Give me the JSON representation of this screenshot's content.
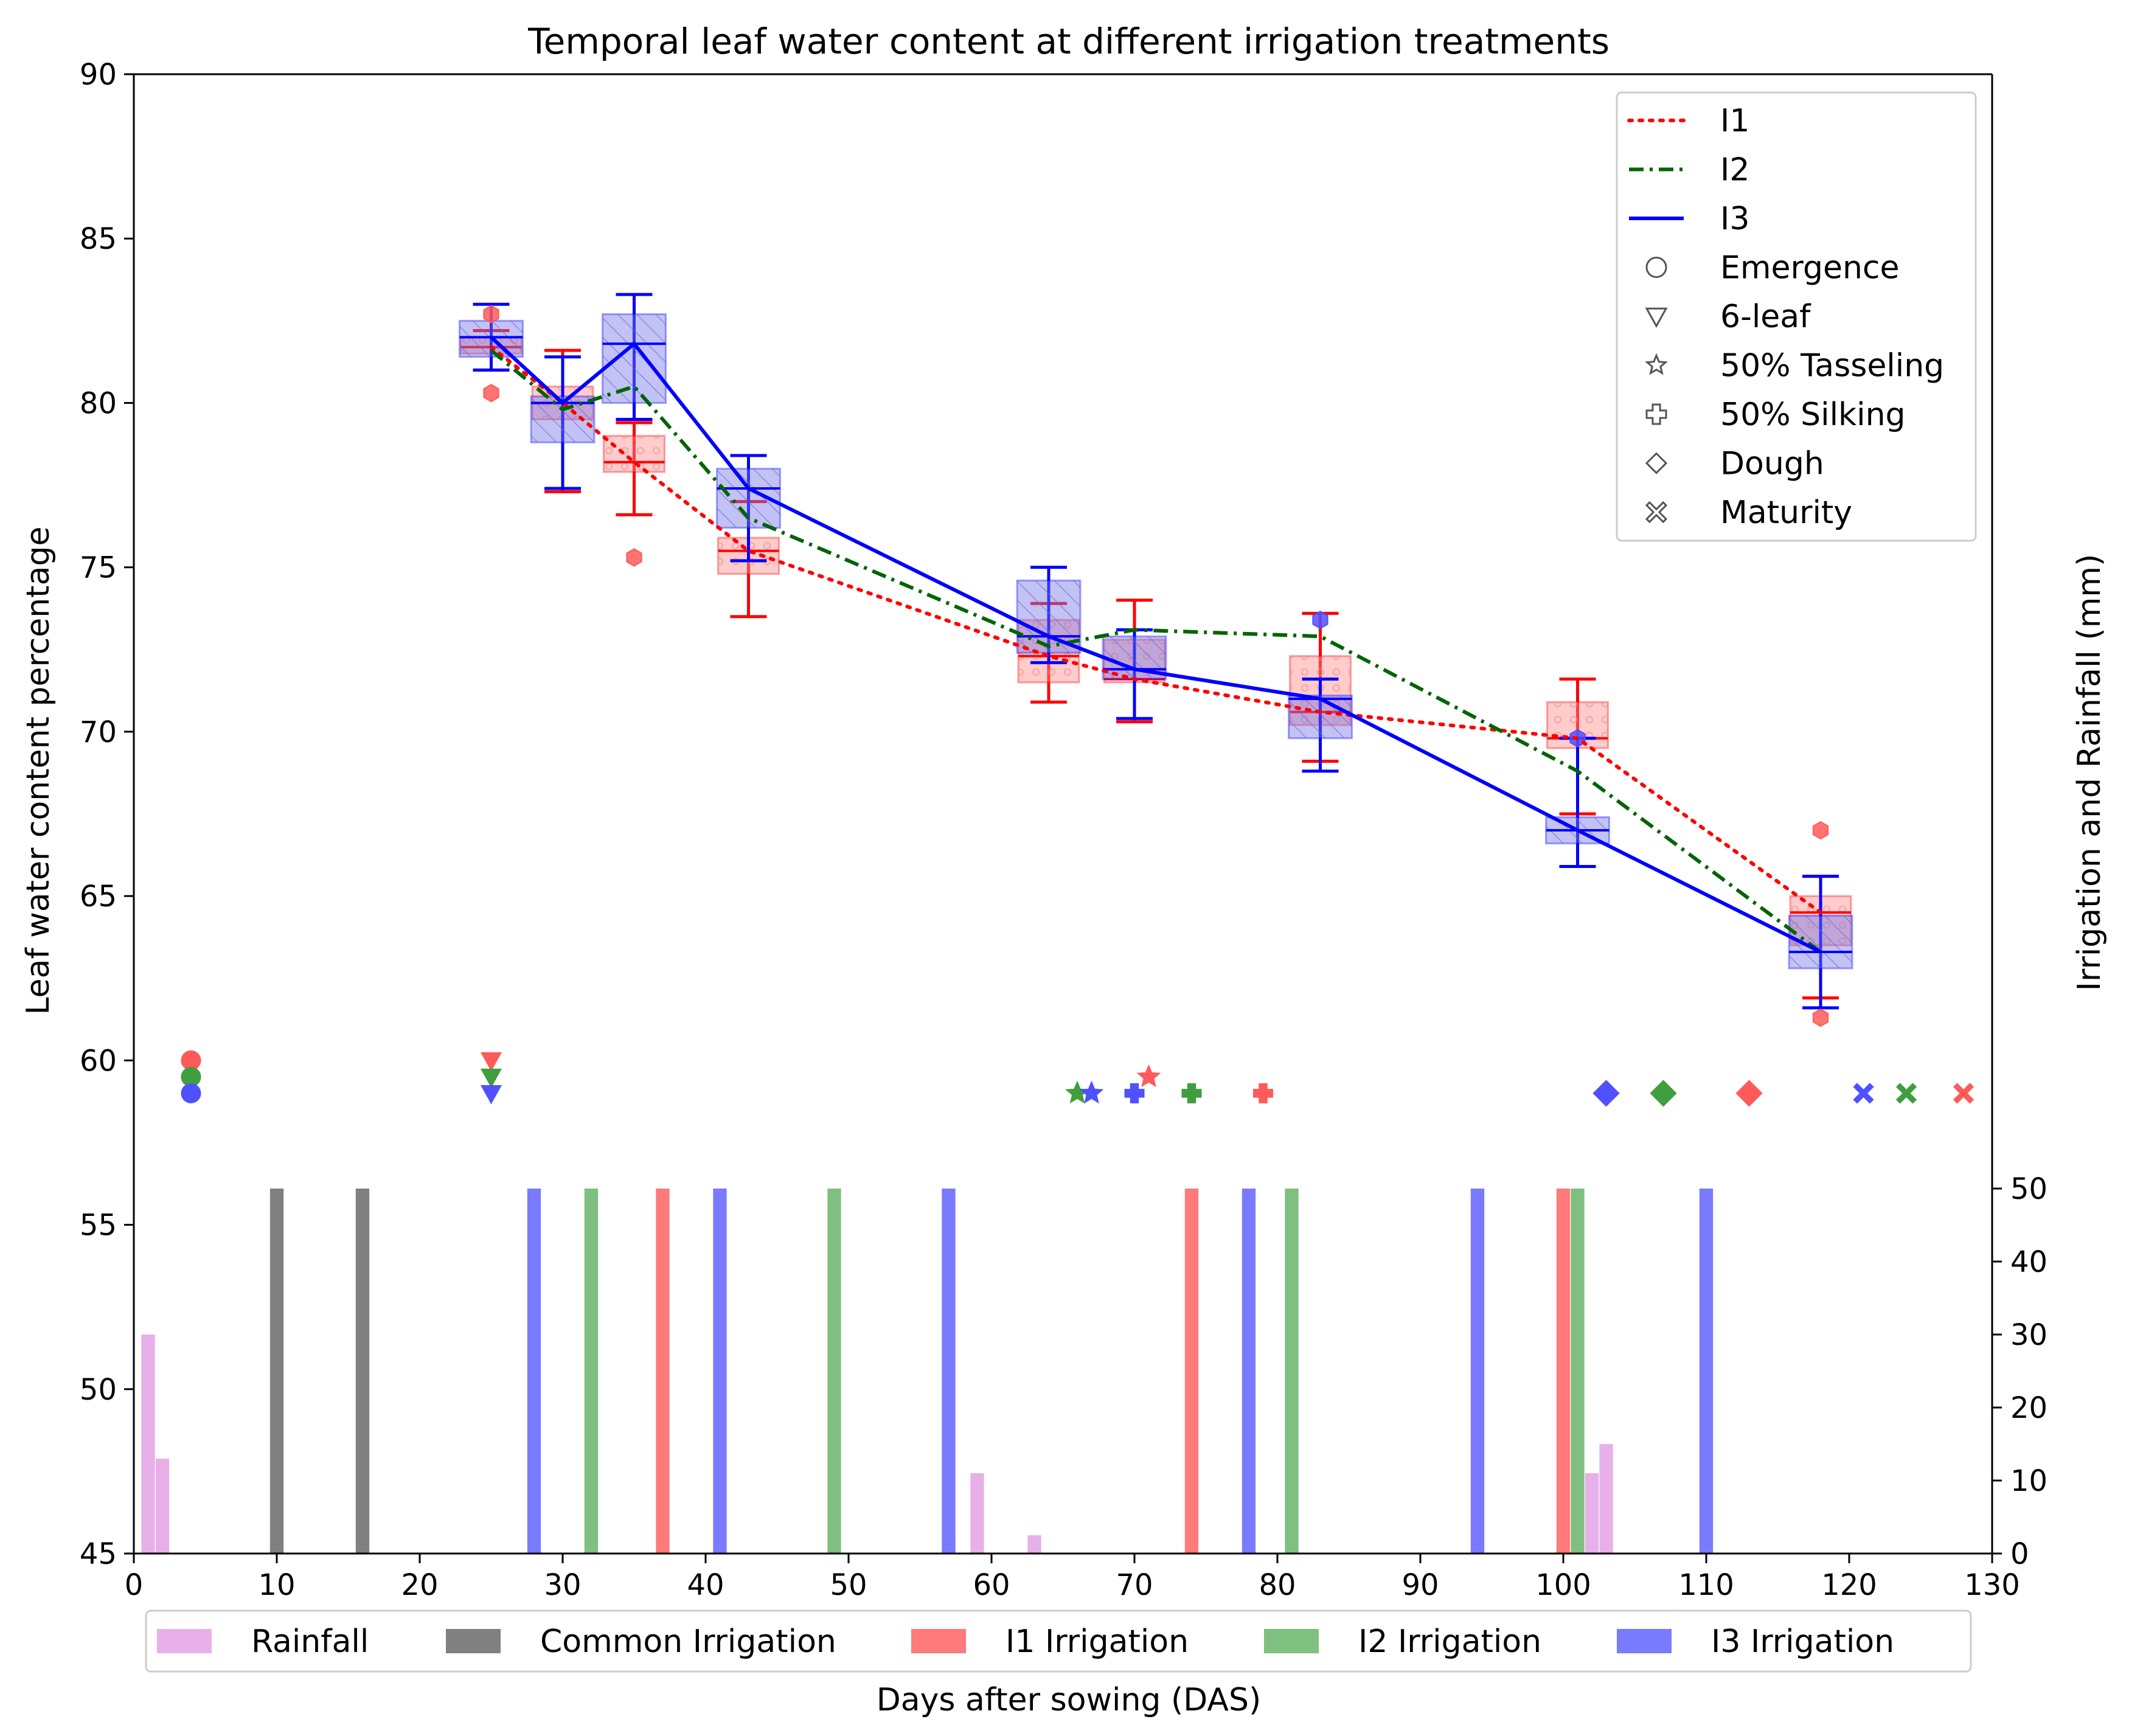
{
  "chart_data": {
    "type": "line",
    "title": "Temporal leaf water content at different irrigation treatments",
    "xlabel": "Days after sowing (DAS)",
    "ylabel": "Leaf water content percentage",
    "y2label": "Irrigation and Rainfall (mm)",
    "xlim": [
      0,
      130
    ],
    "ylim": [
      45,
      90
    ],
    "y2lim": [
      0,
      50
    ],
    "x_ticks": [
      0,
      10,
      20,
      30,
      40,
      50,
      60,
      70,
      80,
      90,
      100,
      110,
      120,
      130
    ],
    "y_ticks": [
      45,
      50,
      55,
      60,
      65,
      70,
      75,
      80,
      85,
      90
    ],
    "y2_ticks": [
      0,
      10,
      20,
      30,
      40,
      50
    ],
    "grid": false,
    "colors": {
      "I1": "#ff0000",
      "I2": "#006400",
      "I3": "#0000ff",
      "I1_box": "#ffaaaa",
      "I3_box": "#9999ee",
      "rainfall": "#e8b0e8",
      "common": "#808080",
      "I1_irr": "#ff7a7a",
      "I2_irr": "#7fbf7f",
      "I3_irr": "#7a7aff"
    },
    "series": [
      {
        "name": "I1",
        "style": "dotted",
        "x": [
          25,
          30,
          35,
          43,
          64,
          70,
          83,
          101,
          118
        ],
        "y": [
          81.7,
          80.0,
          78.2,
          75.5,
          72.3,
          71.6,
          70.6,
          69.8,
          64.5
        ]
      },
      {
        "name": "I2",
        "style": "dashdot",
        "x": [
          25,
          30,
          35,
          43,
          64,
          70,
          83,
          101,
          118
        ],
        "y": [
          81.6,
          79.8,
          80.5,
          76.5,
          72.6,
          73.1,
          72.9,
          68.8,
          63.3
        ]
      },
      {
        "name": "I3",
        "style": "solid",
        "x": [
          25,
          30,
          35,
          43,
          64,
          70,
          83,
          101,
          118
        ],
        "y": [
          82.0,
          80.0,
          81.8,
          77.4,
          72.9,
          71.9,
          71.0,
          67.0,
          63.3
        ]
      }
    ],
    "boxes": {
      "I1": [
        {
          "x": 25,
          "q1": 81.5,
          "med": 81.7,
          "q3": 82.0,
          "lo": 81.0,
          "hi": 82.2
        },
        {
          "x": 30,
          "q1": 79.5,
          "med": 80.0,
          "q3": 80.5,
          "lo": 77.3,
          "hi": 81.6
        },
        {
          "x": 35,
          "q1": 77.9,
          "med": 78.2,
          "q3": 79.0,
          "lo": 76.6,
          "hi": 79.4
        },
        {
          "x": 43,
          "q1": 74.8,
          "med": 75.5,
          "q3": 75.9,
          "lo": 73.5,
          "hi": 77.0
        },
        {
          "x": 64,
          "q1": 71.5,
          "med": 72.3,
          "q3": 73.4,
          "lo": 70.9,
          "hi": 73.9
        },
        {
          "x": 70,
          "q1": 71.5,
          "med": 71.6,
          "q3": 72.8,
          "lo": 70.3,
          "hi": 74.0
        },
        {
          "x": 83,
          "q1": 70.2,
          "med": 70.6,
          "q3": 72.3,
          "lo": 69.1,
          "hi": 73.6
        },
        {
          "x": 101,
          "q1": 69.5,
          "med": 69.8,
          "q3": 70.9,
          "lo": 67.5,
          "hi": 71.6
        },
        {
          "x": 118,
          "q1": 63.5,
          "med": 64.5,
          "q3": 65.0,
          "lo": 61.9,
          "hi": 65.6
        }
      ],
      "I3": [
        {
          "x": 25,
          "q1": 81.4,
          "med": 82.0,
          "q3": 82.5,
          "lo": 81.0,
          "hi": 83.0
        },
        {
          "x": 30,
          "q1": 78.8,
          "med": 80.0,
          "q3": 80.2,
          "lo": 77.4,
          "hi": 81.4
        },
        {
          "x": 35,
          "q1": 80.0,
          "med": 81.8,
          "q3": 82.7,
          "lo": 79.5,
          "hi": 83.3
        },
        {
          "x": 43,
          "q1": 76.2,
          "med": 77.4,
          "q3": 78.0,
          "lo": 75.2,
          "hi": 78.4
        },
        {
          "x": 64,
          "q1": 72.4,
          "med": 72.9,
          "q3": 74.6,
          "lo": 72.1,
          "hi": 75.0
        },
        {
          "x": 70,
          "q1": 71.6,
          "med": 71.9,
          "q3": 72.9,
          "lo": 70.4,
          "hi": 73.1
        },
        {
          "x": 83,
          "q1": 69.8,
          "med": 71.0,
          "q3": 71.1,
          "lo": 68.8,
          "hi": 71.6
        },
        {
          "x": 101,
          "q1": 66.6,
          "med": 67.0,
          "q3": 67.4,
          "lo": 65.9,
          "hi": 69.8
        },
        {
          "x": 118,
          "q1": 62.8,
          "med": 63.3,
          "q3": 64.4,
          "lo": 61.6,
          "hi": 65.6
        }
      ]
    },
    "outliers": [
      {
        "x": 25,
        "y": 82.7,
        "series": "I1"
      },
      {
        "x": 25,
        "y": 80.3,
        "series": "I1"
      },
      {
        "x": 35,
        "y": 75.3,
        "series": "I1"
      },
      {
        "x": 83,
        "y": 73.4,
        "series": "I3"
      },
      {
        "x": 101,
        "y": 69.8,
        "series": "I3"
      },
      {
        "x": 118,
        "y": 67.0,
        "series": "I1"
      },
      {
        "x": 118,
        "y": 61.3,
        "series": "I1"
      }
    ],
    "growth_stages": [
      {
        "stage": "Emergence",
        "marker": "circle",
        "points": [
          {
            "series": "I1",
            "x": 4,
            "y": 60.0
          },
          {
            "series": "I2",
            "x": 4,
            "y": 59.5
          },
          {
            "series": "I3",
            "x": 4,
            "y": 59.0
          }
        ]
      },
      {
        "stage": "6-leaf",
        "marker": "triangle_down",
        "points": [
          {
            "series": "I1",
            "x": 25,
            "y": 60.0
          },
          {
            "series": "I2",
            "x": 25,
            "y": 59.5
          },
          {
            "series": "I3",
            "x": 25,
            "y": 59.0
          }
        ]
      },
      {
        "stage": "50% Tasseling",
        "marker": "star",
        "points": [
          {
            "series": "I1",
            "x": 71,
            "y": 59.5
          },
          {
            "series": "I2",
            "x": 66,
            "y": 59.0
          },
          {
            "series": "I3",
            "x": 67,
            "y": 59.0
          }
        ]
      },
      {
        "stage": "50% Silking",
        "marker": "plus",
        "points": [
          {
            "series": "I1",
            "x": 79,
            "y": 59.0
          },
          {
            "series": "I2",
            "x": 74,
            "y": 59.0
          },
          {
            "series": "I3",
            "x": 70,
            "y": 59.0
          }
        ]
      },
      {
        "stage": "Dough",
        "marker": "diamond",
        "points": [
          {
            "series": "I1",
            "x": 113,
            "y": 59.0
          },
          {
            "series": "I2",
            "x": 107,
            "y": 59.0
          },
          {
            "series": "I3",
            "x": 103,
            "y": 59.0
          }
        ]
      },
      {
        "stage": "Maturity",
        "marker": "xcross",
        "points": [
          {
            "series": "I1",
            "x": 128,
            "y": 59.0
          },
          {
            "series": "I2",
            "x": 124,
            "y": 59.0
          },
          {
            "series": "I3",
            "x": 121,
            "y": 59.0
          }
        ]
      }
    ],
    "bars": [
      {
        "group": "Rainfall",
        "x": 1,
        "mm": 30
      },
      {
        "group": "Rainfall",
        "x": 2,
        "mm": 13
      },
      {
        "group": "Rainfall",
        "x": 59,
        "mm": 11
      },
      {
        "group": "Rainfall",
        "x": 63,
        "mm": 2.5
      },
      {
        "group": "Rainfall",
        "x": 102,
        "mm": 11
      },
      {
        "group": "Rainfall",
        "x": 103,
        "mm": 15
      },
      {
        "group": "Common Irrigation",
        "x": 10,
        "mm": 50
      },
      {
        "group": "Common Irrigation",
        "x": 16,
        "mm": 50
      },
      {
        "group": "I1 Irrigation",
        "x": 37,
        "mm": 50
      },
      {
        "group": "I1 Irrigation",
        "x": 74,
        "mm": 50
      },
      {
        "group": "I1 Irrigation",
        "x": 100,
        "mm": 50
      },
      {
        "group": "I2 Irrigation",
        "x": 32,
        "mm": 50
      },
      {
        "group": "I2 Irrigation",
        "x": 49,
        "mm": 50
      },
      {
        "group": "I2 Irrigation",
        "x": 81,
        "mm": 50
      },
      {
        "group": "I2 Irrigation",
        "x": 101,
        "mm": 50
      },
      {
        "group": "I3 Irrigation",
        "x": 28,
        "mm": 50
      },
      {
        "group": "I3 Irrigation",
        "x": 41,
        "mm": 50
      },
      {
        "group": "I3 Irrigation",
        "x": 57,
        "mm": 50
      },
      {
        "group": "I3 Irrigation",
        "x": 78,
        "mm": 50
      },
      {
        "group": "I3 Irrigation",
        "x": 94,
        "mm": 50
      },
      {
        "group": "I3 Irrigation",
        "x": 110,
        "mm": 50
      }
    ],
    "legend_lines": {
      "placement": "top-right",
      "items": [
        "I1",
        "I2",
        "I3",
        "Emergence",
        "6-leaf",
        "50% Tasseling",
        "50% Silking",
        "Dough",
        "Maturity"
      ]
    },
    "legend_bars": {
      "placement": "bottom",
      "items": [
        "Rainfall",
        "Common Irrigation",
        "I1 Irrigation",
        "I2 Irrigation",
        "I3 Irrigation"
      ]
    }
  }
}
